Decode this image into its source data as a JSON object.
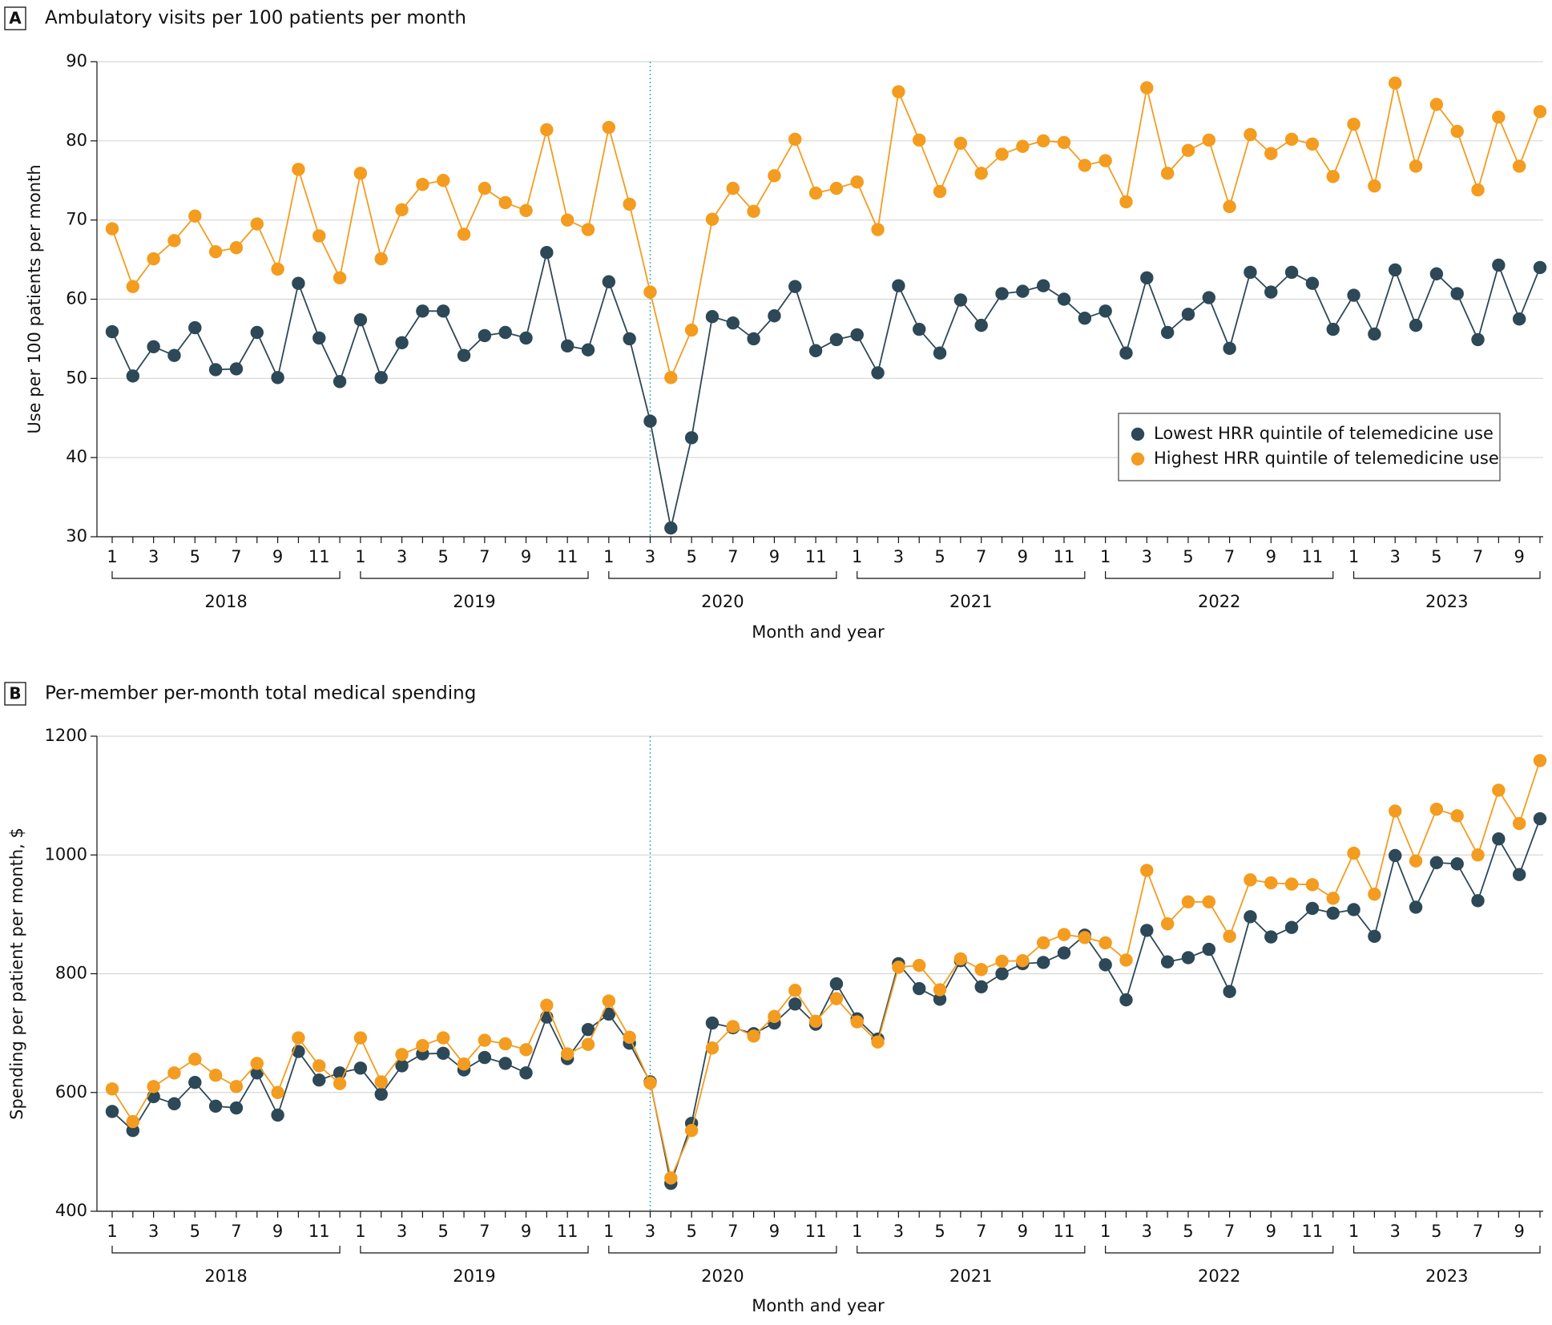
{
  "chart_data": [
    {
      "type": "line",
      "panel_label": "A",
      "title": "Ambulatory visits per 100 patients per month",
      "y_label": "Use per 100 patients per month",
      "x_label": "Month and year",
      "categories": [
        "1",
        null,
        "3",
        null,
        "5",
        null,
        "7",
        null,
        "9",
        null,
        "11",
        null,
        "1",
        null,
        "3",
        null,
        "5",
        null,
        "7",
        null,
        "9",
        null,
        "11",
        null,
        "1",
        null,
        "3",
        null,
        "5",
        null,
        "7",
        null,
        "9",
        null,
        "11",
        null,
        "1",
        null,
        "3",
        null,
        "5",
        null,
        "7",
        null,
        "9",
        null,
        "11",
        null,
        "1",
        null,
        "3",
        null,
        "5",
        null,
        "7",
        null,
        "9",
        null,
        "11",
        null,
        "1",
        null,
        "3",
        null,
        "5",
        null,
        "7",
        null,
        "9",
        null
      ],
      "groups": [
        "2018",
        "2019",
        "2020",
        "2021",
        "2022",
        "2023"
      ],
      "vline_index": 26,
      "ylim": [
        30,
        90
      ],
      "yticks": [
        30,
        40,
        50,
        60,
        70,
        80,
        90
      ],
      "grid": true,
      "legend": "right",
      "series": [
        {
          "name": "Lowest HRR quintile of telemedicine use",
          "color": "#2d4856",
          "values": [
            55.9,
            50.3,
            54,
            52.9,
            56.4,
            51.1,
            51.2,
            55.8,
            50.1,
            62,
            55.1,
            49.6,
            57.4,
            50.1,
            54.5,
            58.5,
            58.5,
            52.9,
            55.4,
            55.8,
            55.1,
            65.9,
            54.1,
            53.6,
            62.2,
            55,
            44.6,
            31.1,
            42.5,
            57.8,
            57,
            55,
            57.9,
            61.6,
            53.5,
            54.9,
            55.5,
            50.7,
            61.7,
            56.2,
            53.2,
            59.9,
            56.7,
            60.7,
            61,
            61.7,
            60,
            57.6,
            58.5,
            53.2,
            62.7,
            55.8,
            58.1,
            60.2,
            53.8,
            63.4,
            60.9,
            63.4,
            62,
            56.2,
            60.5,
            55.6,
            63.7,
            56.7,
            63.2,
            60.7,
            54.9,
            64.3,
            57.5,
            64
          ]
        },
        {
          "name": "Highest HRR quintile of telemedicine use",
          "color": "#f39c1f",
          "values": [
            68.9,
            61.6,
            65.1,
            67.4,
            70.5,
            66,
            66.5,
            69.5,
            63.8,
            76.4,
            68,
            62.7,
            75.9,
            65.1,
            71.3,
            74.5,
            75,
            68.2,
            74,
            72.2,
            71.2,
            81.4,
            70,
            68.8,
            81.7,
            72,
            60.9,
            50.1,
            56.1,
            70.1,
            74,
            71.1,
            75.6,
            80.2,
            73.4,
            74,
            74.8,
            68.8,
            86.2,
            80.1,
            73.6,
            79.7,
            75.9,
            78.3,
            79.3,
            80,
            79.8,
            76.9,
            77.5,
            72.3,
            86.7,
            75.9,
            78.8,
            80.1,
            71.7,
            80.8,
            78.4,
            80.2,
            79.6,
            75.5,
            82.1,
            74.3,
            87.3,
            76.8,
            84.6,
            81.2,
            73.8,
            83,
            76.8,
            83.7
          ]
        }
      ]
    },
    {
      "type": "line",
      "panel_label": "B",
      "title": "Per-member per-month total medical spending",
      "y_label": "Spending per patient per month, $",
      "x_label": "Month and year",
      "categories": [
        "1",
        null,
        "3",
        null,
        "5",
        null,
        "7",
        null,
        "9",
        null,
        "11",
        null,
        "1",
        null,
        "3",
        null,
        "5",
        null,
        "7",
        null,
        "9",
        null,
        "11",
        null,
        "1",
        null,
        "3",
        null,
        "5",
        null,
        "7",
        null,
        "9",
        null,
        "11",
        null,
        "1",
        null,
        "3",
        null,
        "5",
        null,
        "7",
        null,
        "9",
        null,
        "11",
        null,
        "1",
        null,
        "3",
        null,
        "5",
        null,
        "7",
        null,
        "9",
        null,
        "11",
        null,
        "1",
        null,
        "3",
        null,
        "5",
        null,
        "7",
        null,
        "9",
        null
      ],
      "groups": [
        "2018",
        "2019",
        "2020",
        "2021",
        "2022",
        "2023"
      ],
      "vline_index": 26,
      "ylim": [
        400,
        1200
      ],
      "yticks": [
        400,
        600,
        800,
        1000,
        1200
      ],
      "grid": true,
      "series": [
        {
          "color": "#2d4856",
          "values": [
            568,
            536,
            593,
            581,
            617,
            577,
            574,
            633,
            562,
            669,
            621,
            633,
            641,
            597,
            645,
            665,
            666,
            638,
            659,
            649,
            633,
            727,
            657,
            706,
            732,
            683,
            618,
            447,
            548,
            717,
            709,
            699,
            717,
            749,
            715,
            783,
            724,
            690,
            817,
            775,
            757,
            822,
            778,
            800,
            817,
            819,
            835,
            865,
            815,
            756,
            873,
            820,
            827,
            841,
            770,
            896,
            862,
            878,
            910,
            902,
            908,
            863,
            999,
            912,
            987,
            985,
            923,
            1027,
            967,
            1061
          ]
        },
        {
          "color": "#f39c1f",
          "values": [
            606,
            551,
            610,
            633,
            656,
            629,
            610,
            649,
            600,
            692,
            645,
            615,
            692,
            618,
            664,
            679,
            692,
            648,
            688,
            682,
            672,
            747,
            665,
            681,
            754,
            693,
            616,
            456,
            536,
            675,
            711,
            695,
            728,
            772,
            720,
            758,
            719,
            685,
            811,
            814,
            773,
            825,
            807,
            821,
            822,
            852,
            866,
            861,
            852,
            823,
            974,
            884,
            921,
            921,
            863,
            958,
            953,
            951,
            950,
            927,
            1003,
            934,
            1074,
            990,
            1077,
            1066,
            1000,
            1109,
            1053,
            1159
          ]
        }
      ]
    }
  ]
}
